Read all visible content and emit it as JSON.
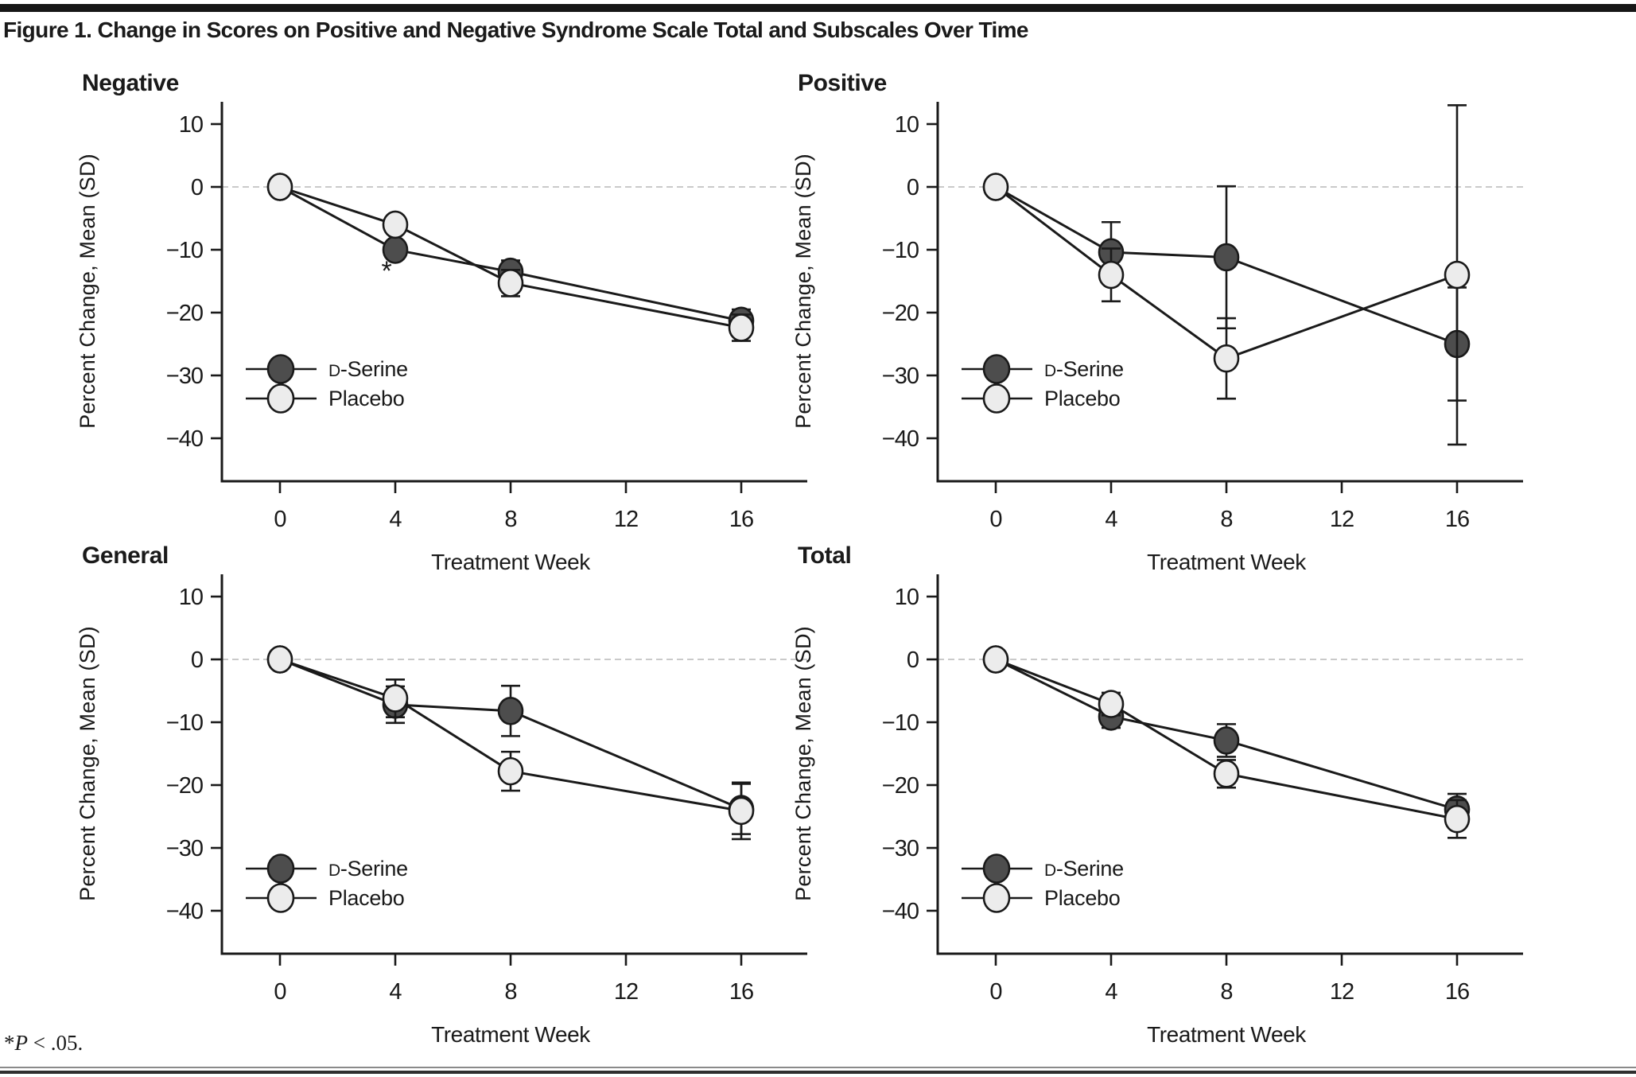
{
  "page": {
    "title": "Figure 1. Change in Scores on Positive and Negative Syndrome Scale Total and Subscales Over Time",
    "footnote": {
      "star": "*",
      "p": "P",
      "rest": " < .05."
    }
  },
  "colors": {
    "axis": "#1a1a1a",
    "line": "#1a1a1a",
    "marker_stroke": "#1a1a1a",
    "dark": "#4d4d4d",
    "light": "#ececec",
    "zero_line": "#c3c3c3",
    "top_bar": "#161616"
  },
  "chart_data": [
    {
      "type": "line",
      "title": "Negative",
      "xlabel": "Treatment Week",
      "ylabel": "Percent Change, Mean (SD)",
      "x_weeks": [
        0,
        4,
        8,
        16
      ],
      "xticks": [
        0,
        4,
        8,
        12,
        16
      ],
      "yticks": [
        10,
        0,
        -10,
        -20,
        -30,
        -40
      ],
      "xlim": [
        -2,
        18.3
      ],
      "ylim": [
        -46,
        13.5
      ],
      "zero_reference_line": true,
      "legend": [
        "D-Serine",
        "Placebo"
      ],
      "series": [
        {
          "name": "D-Serine",
          "marker": "dark",
          "values": [
            0,
            -10,
            -13.5,
            -21.3
          ],
          "sd": [
            0,
            1.3,
            1.8,
            1.8
          ]
        },
        {
          "name": "Placebo",
          "marker": "light",
          "values": [
            0,
            -6,
            -15.3,
            -22.4
          ],
          "sd": [
            0,
            0.9,
            2.1,
            2.1
          ]
        }
      ],
      "annotations": [
        {
          "text": "*",
          "week": 3.7,
          "value": -14.8
        }
      ]
    },
    {
      "type": "line",
      "title": "Positive",
      "xlabel": "Treatment Week",
      "ylabel": "Percent Change, Mean (SD)",
      "x_weeks": [
        0,
        4,
        8,
        16
      ],
      "xticks": [
        0,
        4,
        8,
        12,
        16
      ],
      "yticks": [
        10,
        0,
        -10,
        -20,
        -30,
        -40
      ],
      "xlim": [
        -2,
        18.3
      ],
      "ylim": [
        -46,
        13.5
      ],
      "zero_reference_line": true,
      "legend": [
        "D-Serine",
        "Placebo"
      ],
      "series": [
        {
          "name": "D-Serine",
          "marker": "dark",
          "values": [
            0,
            -10.4,
            -11.2,
            -25
          ],
          "sd": [
            0,
            4.8,
            11.3,
            9
          ]
        },
        {
          "name": "Placebo",
          "marker": "light",
          "values": [
            0,
            -14,
            -27.3,
            -14
          ],
          "sd": [
            0,
            4.2,
            6.4,
            27
          ]
        }
      ],
      "annotations": []
    },
    {
      "type": "line",
      "title": "General",
      "xlabel": "Treatment Week",
      "ylabel": "Percent Change, Mean (SD)",
      "x_weeks": [
        0,
        4,
        8,
        16
      ],
      "xticks": [
        0,
        4,
        8,
        12,
        16
      ],
      "yticks": [
        10,
        0,
        -10,
        -20,
        -30,
        -40
      ],
      "xlim": [
        -2,
        18.3
      ],
      "ylim": [
        -46,
        13.5
      ],
      "zero_reference_line": true,
      "legend": [
        "D-Serine",
        "Placebo"
      ],
      "series": [
        {
          "name": "D-Serine",
          "marker": "dark",
          "values": [
            0,
            -7.2,
            -8.2,
            -23.8
          ],
          "sd": [
            0,
            2.9,
            4.0,
            4.0
          ]
        },
        {
          "name": "Placebo",
          "marker": "light",
          "values": [
            0,
            -6.2,
            -17.8,
            -24.1
          ],
          "sd": [
            0,
            3.0,
            3.1,
            4.5
          ]
        }
      ],
      "annotations": []
    },
    {
      "type": "line",
      "title": "Total",
      "xlabel": "Treatment Week",
      "ylabel": "Percent Change, Mean (SD)",
      "x_weeks": [
        0,
        4,
        8,
        16
      ],
      "xticks": [
        0,
        4,
        8,
        12,
        16
      ],
      "yticks": [
        10,
        0,
        -10,
        -20,
        -30,
        -40
      ],
      "xlim": [
        -2,
        18.3
      ],
      "ylim": [
        -46,
        13.5
      ],
      "zero_reference_line": true,
      "legend": [
        "D-Serine",
        "Placebo"
      ],
      "series": [
        {
          "name": "D-Serine",
          "marker": "dark",
          "values": [
            0,
            -9.1,
            -12.9,
            -23.9
          ],
          "sd": [
            0,
            1.8,
            2.6,
            2.5
          ]
        },
        {
          "name": "Placebo",
          "marker": "light",
          "values": [
            0,
            -7.1,
            -18.2,
            -25.4
          ],
          "sd": [
            0,
            1.8,
            2.2,
            3.0
          ]
        }
      ],
      "annotations": []
    }
  ]
}
